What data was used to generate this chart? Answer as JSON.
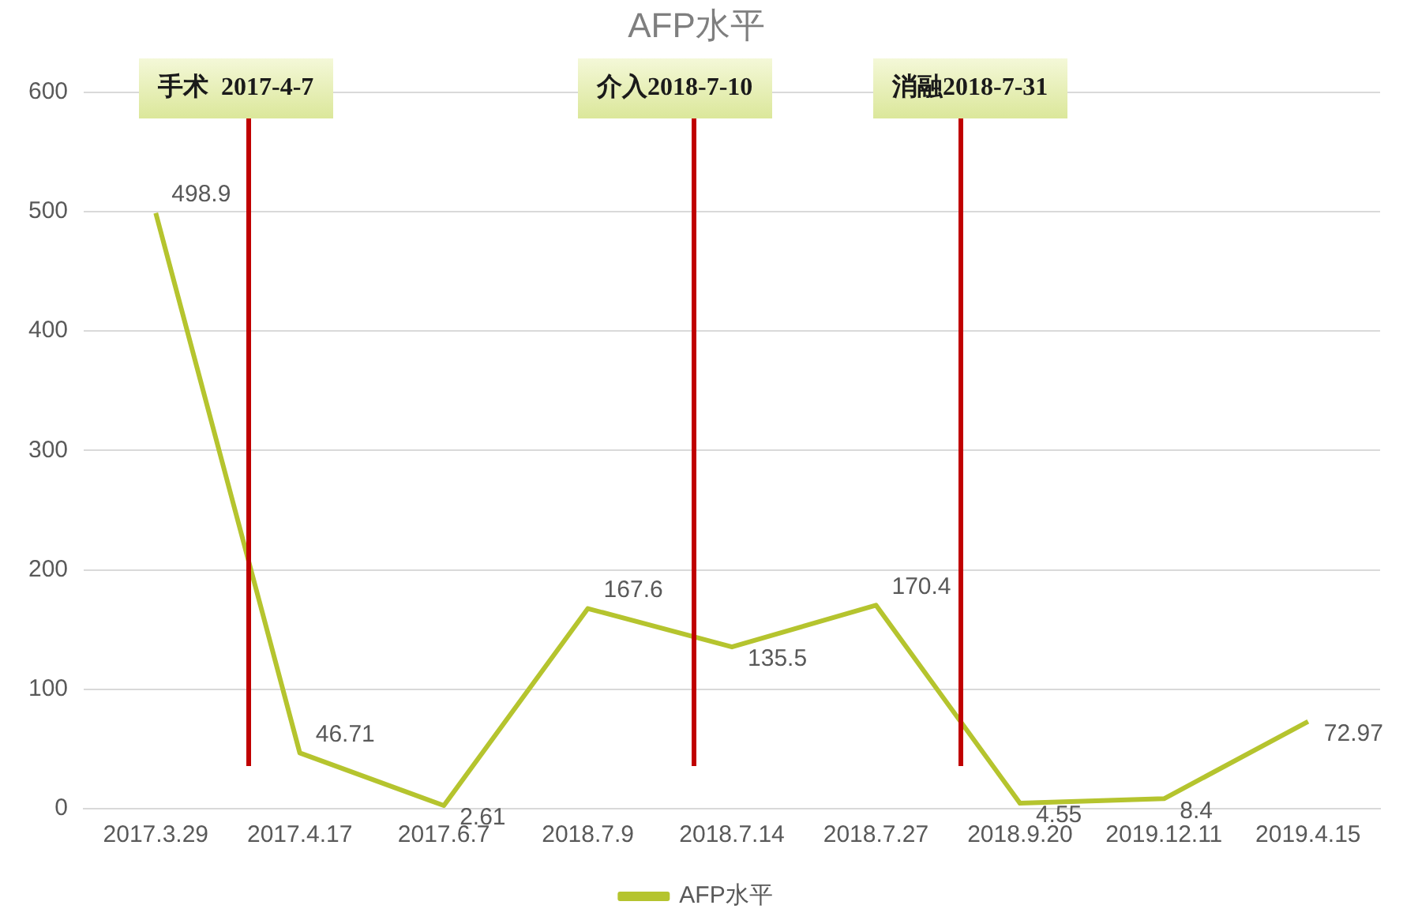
{
  "chart_data": {
    "type": "line",
    "title": "AFP水平",
    "categories": [
      "2017.3.29",
      "2017.4.17",
      "2017.6.7",
      "2018.7.9",
      "2018.7.14",
      "2018.7.27",
      "2018.9.20",
      "2019.12.11",
      "2019.4.15"
    ],
    "series": [
      {
        "name": "AFP水平",
        "color": "#b5c42e",
        "values": [
          498.9,
          46.71,
          2.61,
          167.6,
          135.5,
          170.4,
          4.55,
          8.4,
          72.97
        ]
      }
    ],
    "ylim": [
      0,
      600
    ],
    "yticks": [
      0,
      100,
      200,
      300,
      400,
      500,
      600
    ],
    "grid": "y",
    "legend": "bottom",
    "marker": "none",
    "line_style": "solid",
    "data_labels": true,
    "annotations": [
      "手术  2017-4-7",
      "介入2018-7-10",
      "消融2018-7-31"
    ]
  }
}
